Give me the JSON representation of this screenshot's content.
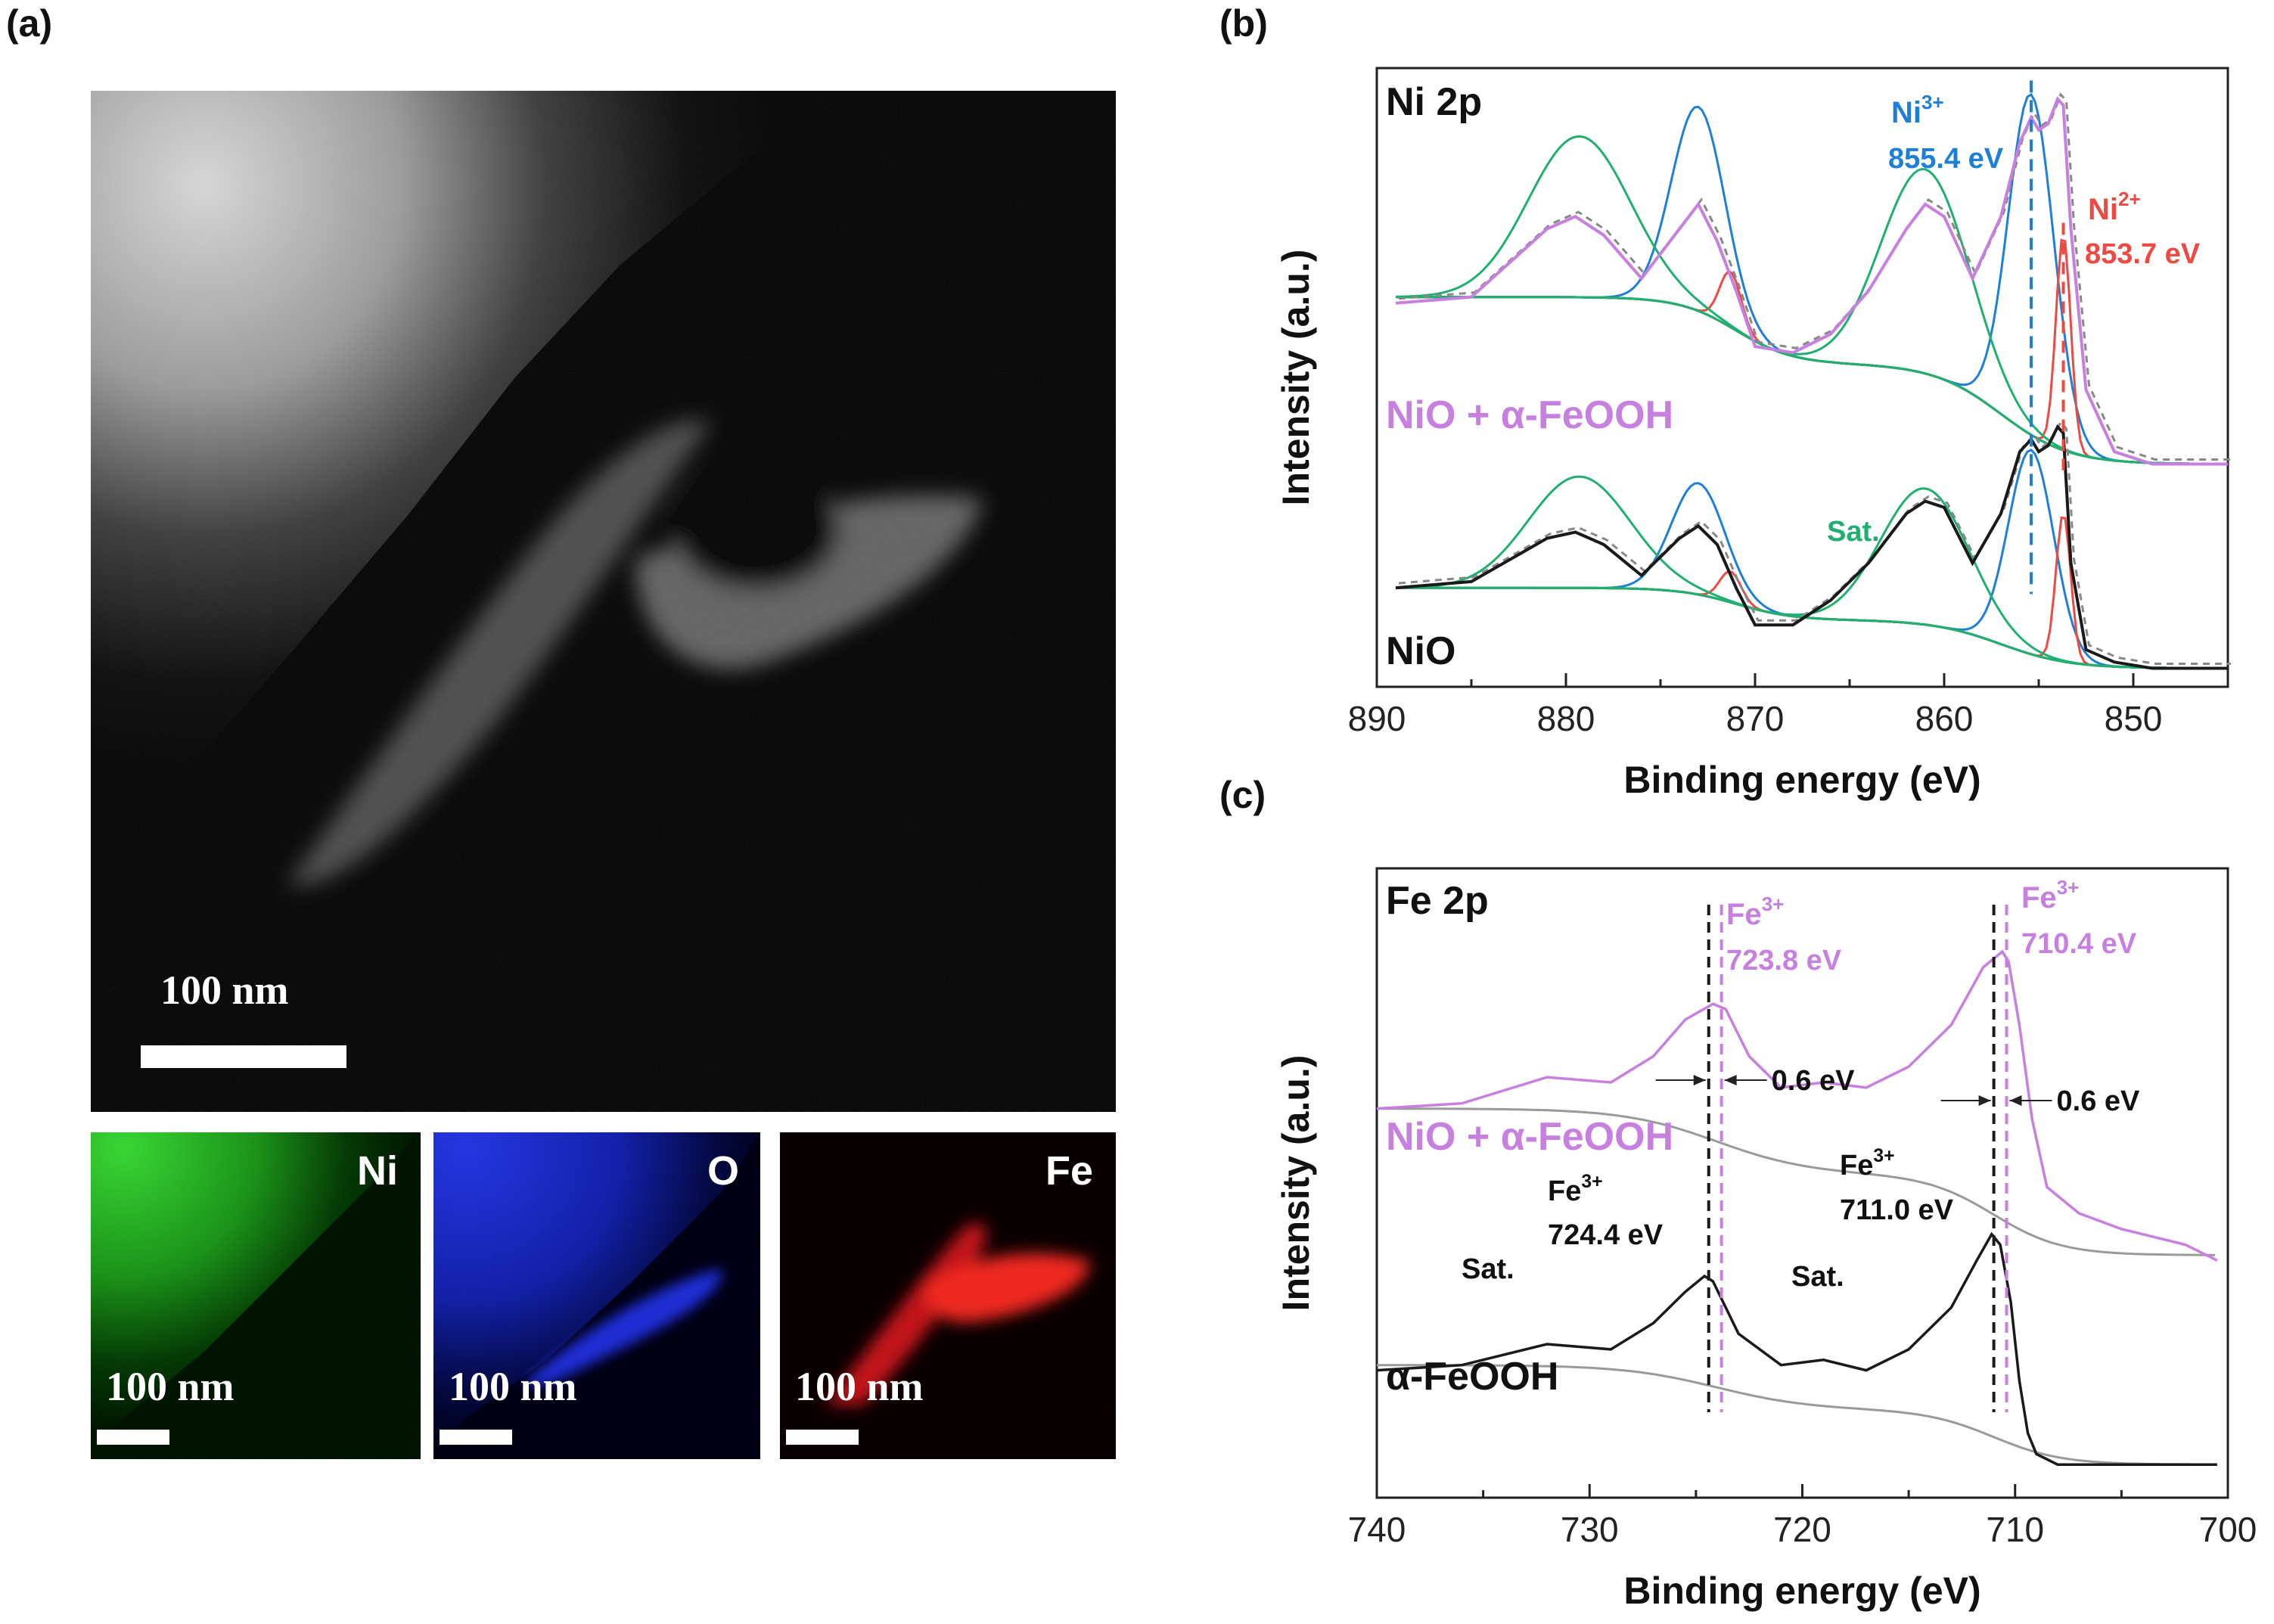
{
  "panels": {
    "a": {
      "label": "(a)",
      "scale_text": "100 nm",
      "maps": [
        {
          "element": "Ni",
          "scale_text": "100 nm",
          "color": "#2ec42a"
        },
        {
          "element": "O",
          "scale_text": "100 nm",
          "color": "#1f2fd8"
        },
        {
          "element": "Fe",
          "scale_text": "100 nm",
          "color": "#e21b14"
        }
      ]
    },
    "b": {
      "label": "(b)"
    },
    "c": {
      "label": "(c)"
    }
  },
  "chart_data": [
    {
      "type": "line",
      "panel": "b",
      "title": "Ni 2p",
      "xlabel": "Binding energy (eV)",
      "ylabel": "Intensity (a.u.)",
      "xlim": [
        890,
        845
      ],
      "xticks": [
        890,
        880,
        870,
        860,
        850
      ],
      "x_reversed": true,
      "y_ticks_shown": false,
      "annotations": {
        "ni3_label": "Ni",
        "ni3_sup": "3+",
        "ni3_value": "855.4 eV",
        "ni2_label": "Ni",
        "ni2_sup": "2+",
        "ni2_value": "853.7 eV",
        "sat_label": "Sat.",
        "sample_top": "NiO + α-FeOOH",
        "sample_bottom": "NiO"
      },
      "reference_lines_eV": [
        855.4,
        853.7
      ],
      "colors": {
        "envelope_top": "#c77fe0",
        "envelope_bottom": "#1a1a1a",
        "ni3": "#1e7fd8",
        "ni2": "#ee4a44",
        "satellite": "#1fb070",
        "raw": "#888888"
      },
      "series": [
        {
          "name": "NiO + α-FeOOH",
          "x": [
            889,
            885,
            881,
            879.5,
            878,
            876,
            874,
            873,
            872,
            871,
            870,
            868,
            866,
            864,
            862,
            861,
            860,
            858.5,
            857,
            856,
            855.4,
            855,
            854.5,
            854,
            853.7,
            853.3,
            852.5,
            851,
            849,
            845
          ],
          "y": [
            0.62,
            0.63,
            0.74,
            0.76,
            0.73,
            0.66,
            0.74,
            0.78,
            0.72,
            0.64,
            0.55,
            0.54,
            0.57,
            0.64,
            0.74,
            0.78,
            0.76,
            0.66,
            0.76,
            0.88,
            0.92,
            0.9,
            0.91,
            0.95,
            0.94,
            0.74,
            0.48,
            0.38,
            0.36,
            0.36
          ]
        },
        {
          "name": "NiO",
          "x": [
            889,
            885,
            881,
            879.5,
            878,
            876,
            874,
            873,
            872,
            871,
            870,
            868,
            866,
            864,
            862,
            861,
            860,
            858.5,
            857,
            856,
            855.4,
            855,
            854.5,
            854,
            853.7,
            853.3,
            852.5,
            851,
            849,
            845
          ],
          "y": [
            0.16,
            0.17,
            0.24,
            0.25,
            0.23,
            0.18,
            0.24,
            0.26,
            0.23,
            0.16,
            0.1,
            0.1,
            0.14,
            0.2,
            0.28,
            0.3,
            0.29,
            0.2,
            0.28,
            0.38,
            0.4,
            0.38,
            0.39,
            0.42,
            0.41,
            0.2,
            0.06,
            0.04,
            0.03,
            0.03
          ]
        }
      ]
    },
    {
      "type": "line",
      "panel": "c",
      "title": "Fe 2p",
      "xlabel": "Binding energy (eV)",
      "ylabel": "Intensity (a.u.)",
      "xlim": [
        740,
        700
      ],
      "xticks": [
        740,
        730,
        720,
        710,
        700
      ],
      "x_reversed": true,
      "y_ticks_shown": false,
      "annotations": {
        "fe_top_label": "Fe",
        "fe_sup": "3+",
        "fe_top_1_value": "723.8 eV",
        "fe_top_2_value": "710.4 eV",
        "fe_bottom_1_value": "724.4 eV",
        "fe_bottom_2_value": "711.0 eV",
        "shift_1": "0.6 eV",
        "shift_2": "0.6 eV",
        "sat_1": "Sat.",
        "sat_2": "Sat.",
        "sample_top": "NiO + α-FeOOH",
        "sample_bottom": "α-FeOOH"
      },
      "reference_lines_eV": [
        724.4,
        723.8,
        711.0,
        710.4
      ],
      "colors": {
        "top": "#c77fe0",
        "bottom": "#1a1a1a",
        "background": "#9a9a9a"
      },
      "series": [
        {
          "name": "NiO + α-FeOOH",
          "x": [
            740,
            736,
            732,
            729,
            727,
            725.5,
            724.2,
            723.6,
            722.5,
            721,
            719,
            717,
            715,
            713,
            711.5,
            710.6,
            710.3,
            709.8,
            709.2,
            708.5,
            707,
            705,
            702,
            700.5
          ],
          "y": [
            0.7,
            0.71,
            0.76,
            0.75,
            0.8,
            0.87,
            0.9,
            0.89,
            0.8,
            0.74,
            0.75,
            0.74,
            0.78,
            0.86,
            0.97,
            1.0,
            0.98,
            0.86,
            0.68,
            0.55,
            0.5,
            0.47,
            0.44,
            0.41
          ]
        },
        {
          "name": "α-FeOOH",
          "x": [
            740,
            736,
            732,
            729,
            727,
            725.5,
            724.6,
            724.2,
            723,
            721,
            719,
            717,
            715,
            713,
            711.8,
            711.1,
            710.7,
            710.2,
            709.8,
            709.4,
            709,
            708,
            705,
            700.5
          ],
          "y": [
            0.2,
            0.21,
            0.25,
            0.24,
            0.29,
            0.35,
            0.38,
            0.37,
            0.27,
            0.21,
            0.22,
            0.2,
            0.24,
            0.32,
            0.41,
            0.46,
            0.44,
            0.33,
            0.18,
            0.08,
            0.04,
            0.02,
            0.02,
            0.02
          ]
        }
      ]
    }
  ]
}
